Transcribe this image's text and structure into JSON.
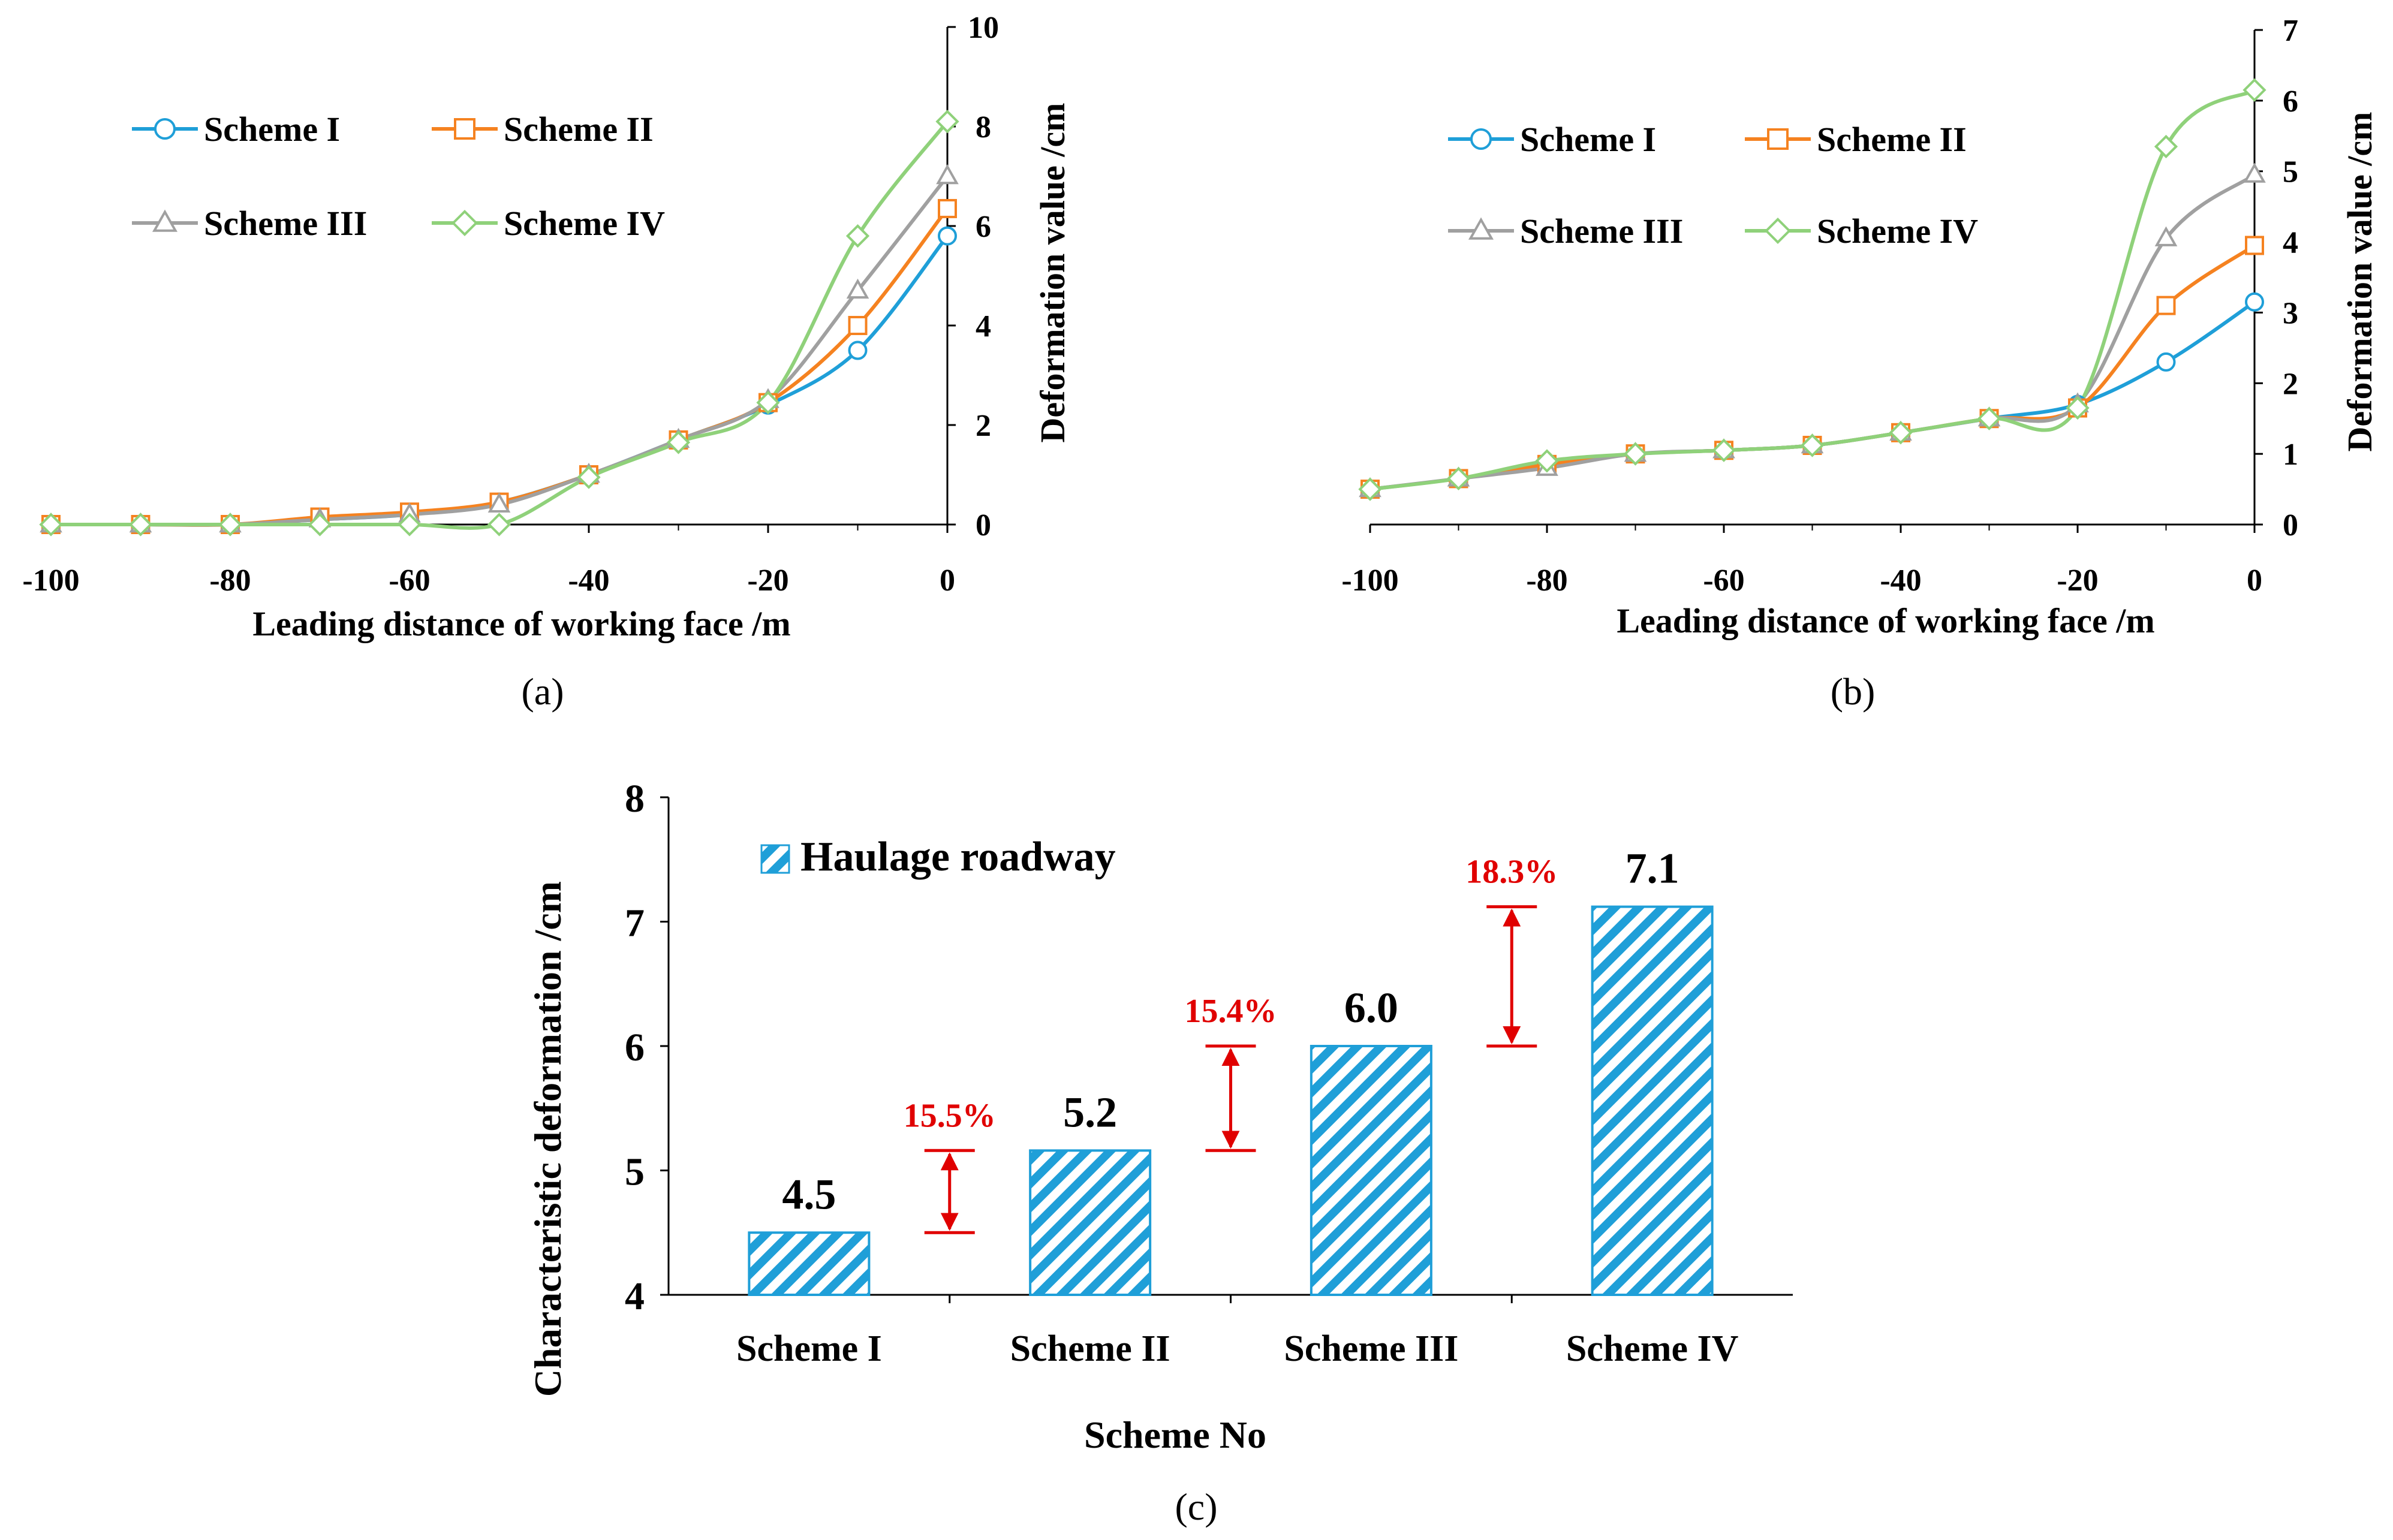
{
  "colors": {
    "scheme1": "#1f9fd8",
    "scheme2": "#f58220",
    "scheme3": "#a0a0a0",
    "scheme4": "#8fd17a",
    "bar": "#1f9fd8",
    "arrow": "#e00000"
  },
  "chart_data": [
    {
      "type": "line",
      "panel_label": "(a)",
      "xlabel": "Leading distance of working face /m",
      "ylabel": "Deformation value /cm",
      "xlim": [
        -100,
        0
      ],
      "ylim": [
        0,
        10
      ],
      "x_ticks": [
        "-100",
        "-80",
        "-60",
        "-40",
        "-20",
        "0"
      ],
      "y_ticks": [
        "0",
        "2",
        "4",
        "6",
        "8",
        "10"
      ],
      "legend": "top-left",
      "x": [
        -100,
        -90,
        -80,
        -70,
        -60,
        -50,
        -40,
        -30,
        -20,
        -10,
        0
      ],
      "series": [
        {
          "name": "Scheme I",
          "marker": "circle",
          "values": [
            0,
            0,
            0,
            0.1,
            0.2,
            0.45,
            1.0,
            1.7,
            2.4,
            3.5,
            5.8
          ]
        },
        {
          "name": "Scheme II",
          "marker": "square",
          "values": [
            0,
            0,
            0,
            0.15,
            0.25,
            0.45,
            1.0,
            1.7,
            2.45,
            4.0,
            6.35
          ]
        },
        {
          "name": "Scheme III",
          "marker": "triangle",
          "values": [
            0,
            0,
            0,
            0.1,
            0.2,
            0.4,
            1.0,
            1.7,
            2.5,
            4.7,
            7.0
          ]
        },
        {
          "name": "Scheme IV",
          "marker": "diamond",
          "values": [
            0,
            0,
            0,
            0,
            0,
            0,
            0.95,
            1.65,
            2.45,
            5.8,
            8.1
          ]
        }
      ]
    },
    {
      "type": "line",
      "panel_label": "(b)",
      "xlabel": "Leading distance of working face /m",
      "ylabel": "Deformation value /cm",
      "xlim": [
        -100,
        0
      ],
      "ylim": [
        0,
        7
      ],
      "x_ticks": [
        "-100",
        "-80",
        "-60",
        "-40",
        "-20",
        "0"
      ],
      "y_ticks": [
        "0",
        "1",
        "2",
        "3",
        "4",
        "5",
        "6",
        "7"
      ],
      "legend": "top-left",
      "x": [
        -100,
        -90,
        -80,
        -70,
        -60,
        -50,
        -40,
        -30,
        -20,
        -10,
        0
      ],
      "series": [
        {
          "name": "Scheme I",
          "marker": "circle",
          "values": [
            0.5,
            0.65,
            0.85,
            1.0,
            1.05,
            1.12,
            1.3,
            1.5,
            1.7,
            2.3,
            3.15
          ]
        },
        {
          "name": "Scheme II",
          "marker": "square",
          "values": [
            0.5,
            0.65,
            0.85,
            1.0,
            1.05,
            1.12,
            1.3,
            1.5,
            1.65,
            3.1,
            3.95
          ]
        },
        {
          "name": "Scheme III",
          "marker": "triangle",
          "values": [
            0.5,
            0.65,
            0.8,
            1.0,
            1.05,
            1.12,
            1.3,
            1.5,
            1.7,
            4.05,
            4.95
          ]
        },
        {
          "name": "Scheme IV",
          "marker": "diamond",
          "values": [
            0.5,
            0.65,
            0.9,
            1.0,
            1.05,
            1.12,
            1.3,
            1.5,
            1.65,
            5.35,
            6.15
          ]
        }
      ]
    },
    {
      "type": "bar",
      "panel_label": "(c)",
      "xlabel": "Scheme No",
      "ylabel": "Characteristic deformation /cm",
      "ylim": [
        4,
        8
      ],
      "y_ticks": [
        "4",
        "5",
        "6",
        "7",
        "8"
      ],
      "legend": "top-left",
      "series_name": "Haulage roadway",
      "categories": [
        "Scheme I",
        "Scheme II",
        "Scheme III",
        "Scheme IV"
      ],
      "values": [
        4.5,
        5.16,
        6.0,
        7.12
      ],
      "value_labels": [
        "4.5",
        "5.2",
        "6.0",
        "7.1"
      ],
      "increases": [
        {
          "from": 4.5,
          "to": 5.16,
          "label": "15.5%"
        },
        {
          "from": 5.16,
          "to": 6.0,
          "label": "15.4%"
        },
        {
          "from": 6.0,
          "to": 7.12,
          "label": "18.3%"
        }
      ]
    }
  ]
}
